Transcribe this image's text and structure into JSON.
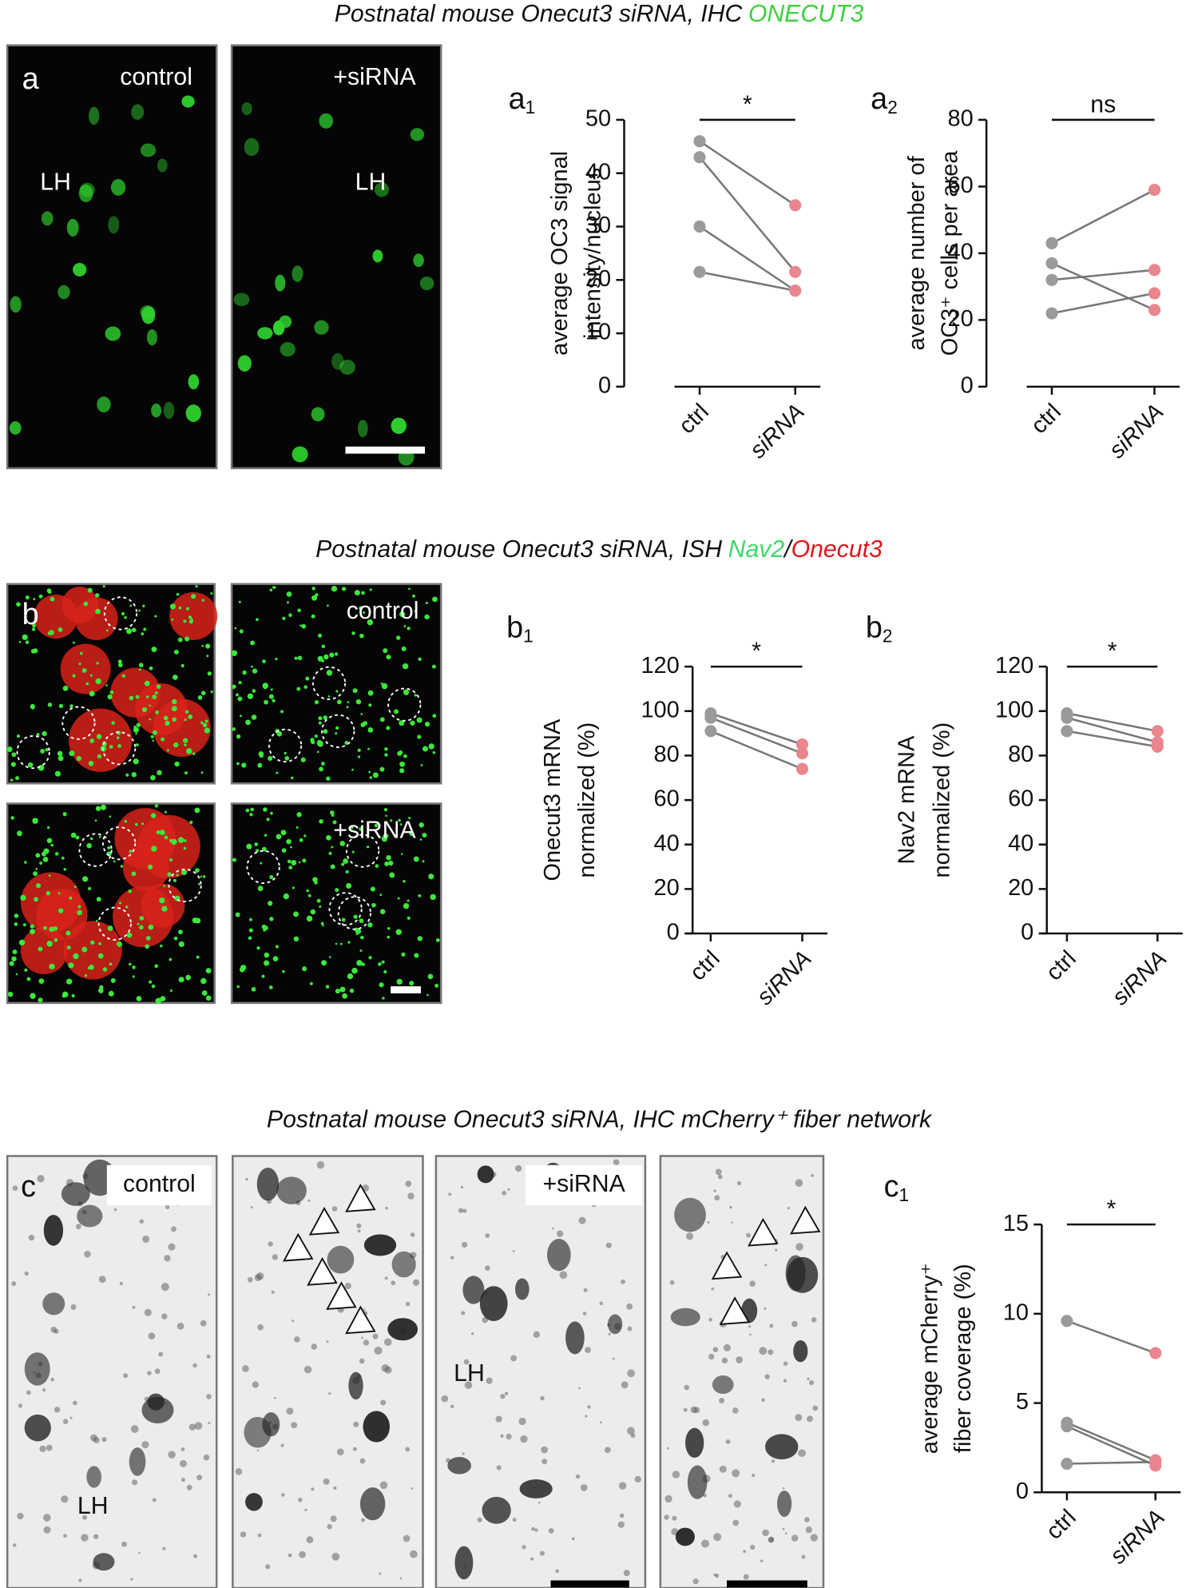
{
  "titles": [
    [
      "Postnatal mouse Onecut3 siRNA, IHC",
      "ONECUT3"
    ],
    [
      "Postnatal mouse Onecut3 siRNA, ISH",
      "Nav2",
      "/",
      "Onecut3"
    ],
    [
      "Postnatal mouse Onecut3 siRNA, IHC mCherry⁺ fiber network"
    ]
  ],
  "image_texts": [
    "a",
    "control",
    "LH",
    "+siRNA",
    "LH",
    "b",
    "control",
    "+siRNA",
    "c",
    "control",
    "LH",
    "+siRNA",
    "LH"
  ],
  "chart_data": [
    {
      "type": "paired-dot",
      "label": "a",
      "label_sub": "1",
      "ylabel": [
        "average OC3 signal",
        "intensity/nucleus"
      ],
      "categories": [
        "ctrl",
        "siRNA"
      ],
      "colors": [
        "#9a9a9a",
        "#ea868e"
      ],
      "pairs": [
        [
          46,
          34
        ],
        [
          43,
          21.5
        ],
        [
          30,
          18
        ],
        [
          21.5,
          18
        ]
      ],
      "ylim": [
        0,
        50
      ],
      "yticks": [
        0,
        10,
        20,
        30,
        40,
        50
      ],
      "significance": "*"
    },
    {
      "type": "paired-dot",
      "label": "a",
      "label_sub": "2",
      "ylabel": [
        "average number of",
        "OC3⁺ cells per area"
      ],
      "categories": [
        "ctrl",
        "siRNA"
      ],
      "colors": [
        "#9a9a9a",
        "#ea868e"
      ],
      "pairs": [
        [
          43,
          59
        ],
        [
          37,
          23
        ],
        [
          32,
          35
        ],
        [
          22,
          28
        ]
      ],
      "ylim": [
        0,
        80
      ],
      "yticks": [
        0,
        20,
        40,
        60,
        80
      ],
      "significance": "ns"
    },
    {
      "type": "paired-dot",
      "label": "b",
      "label_sub": "1",
      "ylabel": [
        "Onecut3 mRNA",
        "normalized (%)"
      ],
      "categories": [
        "ctrl",
        "siRNA"
      ],
      "colors": [
        "#9a9a9a",
        "#ea868e"
      ],
      "pairs": [
        [
          99,
          85
        ],
        [
          97,
          81
        ],
        [
          91,
          74
        ]
      ],
      "ylim": [
        0,
        120
      ],
      "yticks": [
        0,
        20,
        40,
        60,
        80,
        100,
        120
      ],
      "significance": "*"
    },
    {
      "type": "paired-dot",
      "label": "b",
      "label_sub": "2",
      "ylabel": [
        "Nav2 mRNA",
        "normalized (%)"
      ],
      "categories": [
        "ctrl",
        "siRNA"
      ],
      "colors": [
        "#9a9a9a",
        "#ea868e"
      ],
      "pairs": [
        [
          99,
          91
        ],
        [
          97,
          86
        ],
        [
          91,
          84
        ]
      ],
      "ylim": [
        0,
        120
      ],
      "yticks": [
        0,
        20,
        40,
        60,
        80,
        100,
        120
      ],
      "significance": "*"
    },
    {
      "type": "paired-dot",
      "label": "c",
      "label_sub": "1",
      "ylabel": [
        "average mCherry⁺",
        "fiber coverage (%)"
      ],
      "categories": [
        "ctrl",
        "siRNA"
      ],
      "colors": [
        "#9a9a9a",
        "#ea868e"
      ],
      "pairs": [
        [
          9.6,
          7.8
        ],
        [
          3.9,
          1.8
        ],
        [
          3.7,
          1.5
        ],
        [
          1.6,
          1.7
        ]
      ],
      "ylim": [
        0,
        15
      ],
      "yticks": [
        0,
        5,
        10,
        15
      ],
      "significance": "*"
    }
  ]
}
